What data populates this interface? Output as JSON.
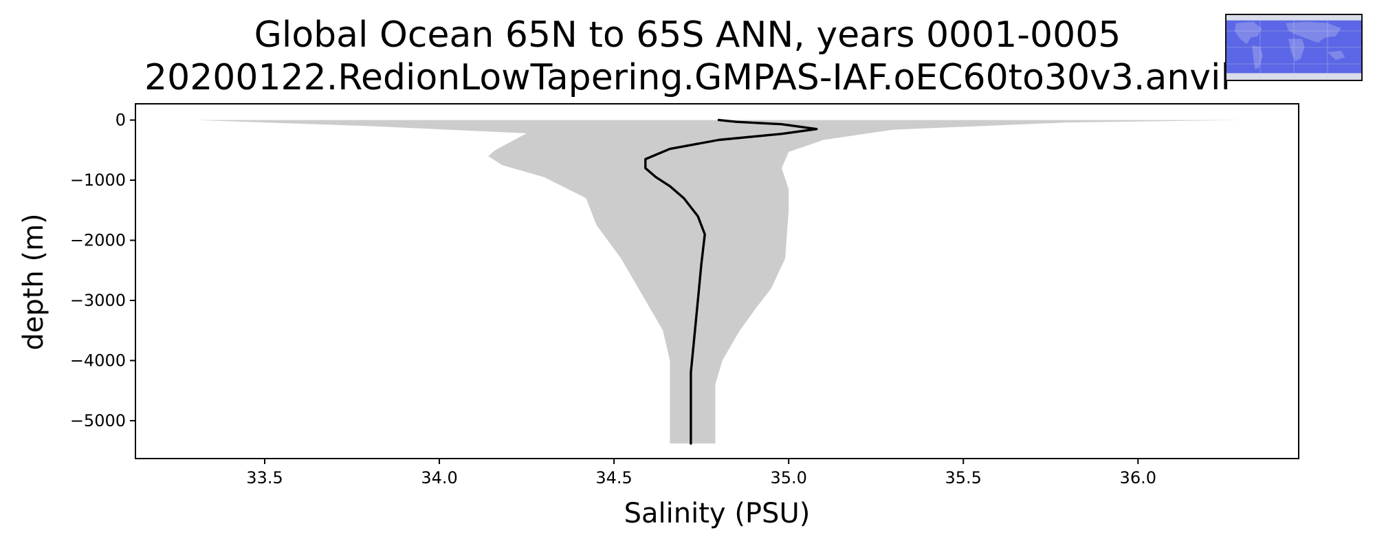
{
  "chart_data": {
    "type": "line",
    "title": "Global Ocean 65N to 65S ANN, years 0001-0005",
    "subtitle": "20200122.RedionLowTapering.GMPAS-IAF.oEC60to30v3.anvil",
    "xlabel": "Salinity (PSU)",
    "ylabel": "depth (m)",
    "xlim": [
      33.13,
      36.46
    ],
    "ylim": [
      -5630,
      270
    ],
    "x_ticks": [
      33.5,
      34.0,
      34.5,
      35.0,
      35.5,
      36.0
    ],
    "x_tick_labels": [
      "33.5",
      "34.0",
      "34.5",
      "35.0",
      "35.5",
      "36.0"
    ],
    "y_ticks": [
      0,
      -1000,
      -2000,
      -3000,
      -4000,
      -5000
    ],
    "y_tick_labels": [
      "0",
      "−1000",
      "−2000",
      "−3000",
      "−4000",
      "−5000"
    ],
    "grid": false,
    "legend": "none",
    "series": [
      {
        "style": "line",
        "color": "#000000",
        "points": [
          [
            34.8,
            0
          ],
          [
            34.85,
            -30
          ],
          [
            34.98,
            -70
          ],
          [
            35.08,
            -150
          ],
          [
            34.98,
            -230
          ],
          [
            34.8,
            -330
          ],
          [
            34.66,
            -480
          ],
          [
            34.59,
            -650
          ],
          [
            34.59,
            -800
          ],
          [
            34.62,
            -950
          ],
          [
            34.66,
            -1100
          ],
          [
            34.7,
            -1300
          ],
          [
            34.74,
            -1600
          ],
          [
            34.76,
            -1900
          ],
          [
            34.75,
            -2400
          ],
          [
            34.74,
            -3000
          ],
          [
            34.73,
            -3600
          ],
          [
            34.72,
            -4200
          ],
          [
            34.72,
            -4800
          ],
          [
            34.72,
            -5380
          ]
        ]
      },
      {
        "style": "band",
        "color": "#cccccc",
        "upper": [
          [
            36.3,
            0
          ],
          [
            35.8,
            -40
          ],
          [
            35.3,
            -160
          ],
          [
            35.1,
            -330
          ],
          [
            35.0,
            -530
          ],
          [
            34.98,
            -800
          ],
          [
            35.0,
            -1150
          ],
          [
            35.0,
            -1500
          ],
          [
            34.99,
            -2300
          ],
          [
            34.95,
            -2800
          ],
          [
            34.91,
            -3100
          ],
          [
            34.86,
            -3500
          ],
          [
            34.81,
            -4000
          ],
          [
            34.79,
            -4400
          ],
          [
            34.79,
            -5380
          ]
        ],
        "lower": [
          [
            33.3,
            0
          ],
          [
            33.8,
            -100
          ],
          [
            34.25,
            -220
          ],
          [
            34.16,
            -500
          ],
          [
            34.14,
            -600
          ],
          [
            34.18,
            -750
          ],
          [
            34.3,
            -950
          ],
          [
            34.42,
            -1300
          ],
          [
            34.45,
            -1750
          ],
          [
            34.52,
            -2300
          ],
          [
            34.59,
            -3000
          ],
          [
            34.64,
            -3500
          ],
          [
            34.66,
            -4000
          ],
          [
            34.66,
            -5380
          ]
        ]
      }
    ]
  }
}
